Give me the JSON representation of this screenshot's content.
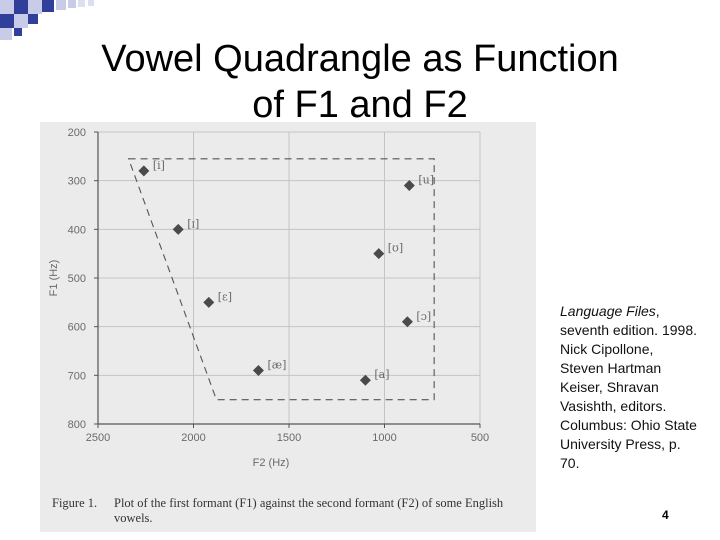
{
  "slide": {
    "title_line1": "Vowel Quadrangle as Function",
    "title_line2": "of F1 and F2",
    "citation_italic": "Language Files",
    "citation_rest": ", seventh edition. 1998. Nick Cipollone, Steven Hartman Keiser, Shravan Vasishth, editors. Columbus: Ohio State University Press, p. 70.",
    "page_number": "4",
    "figure_label": "Figure 1.",
    "figure_caption": "Plot of the first formant (F1) against the second formant (F2) of some English vowels."
  },
  "chart_data": {
    "type": "scatter",
    "xlabel": "F2 (Hz)",
    "ylabel": "F1 (Hz)",
    "xlim": [
      2500,
      500
    ],
    "ylim": [
      200,
      800
    ],
    "x_ticks": [
      2500,
      2000,
      1500,
      1000,
      500
    ],
    "y_ticks": [
      200,
      300,
      400,
      500,
      600,
      700,
      800
    ],
    "x_reversed": true,
    "y_reversed": true,
    "grid": true,
    "points": [
      {
        "label": "[i]",
        "x": 2260,
        "y": 280
      },
      {
        "label": "[ɪ]",
        "x": 2080,
        "y": 400
      },
      {
        "label": "[ɛ]",
        "x": 1920,
        "y": 550
      },
      {
        "label": "[æ]",
        "x": 1660,
        "y": 690
      },
      {
        "label": "[u]",
        "x": 870,
        "y": 310
      },
      {
        "label": "[ʊ]",
        "x": 1030,
        "y": 450
      },
      {
        "label": "[ɔ]",
        "x": 880,
        "y": 590
      },
      {
        "label": "[a]",
        "x": 1100,
        "y": 710
      }
    ],
    "quadrangle": [
      {
        "x": 2340,
        "y": 255
      },
      {
        "x": 740,
        "y": 255
      },
      {
        "x": 740,
        "y": 750
      },
      {
        "x": 1880,
        "y": 750
      }
    ]
  },
  "colors": {
    "background": "#ebebeb",
    "grid": "#c4c4c4",
    "axis": "#555555",
    "marker": "#4a4a4a",
    "text": "#6a6a6a",
    "deco_blue": "#2f3f9a",
    "deco_light": "#c8cce8"
  }
}
